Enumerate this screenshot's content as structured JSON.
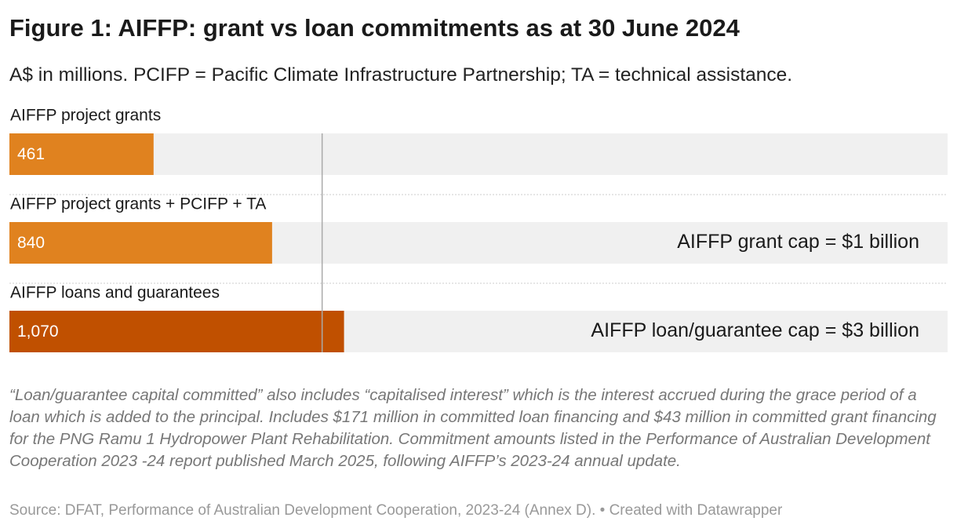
{
  "chart_data": {
    "type": "bar",
    "title": "Figure 1: AIFFP: grant vs loan commitments as at 30 June 2024",
    "subtitle": "A$ in millions. PCIFP = Pacific Climate Infrastructure Partnership; TA = technical assistance.",
    "categories": [
      "AIFFP project grants",
      "AIFFP project grants + PCIFP + TA",
      "AIFFP loans and guarantees"
    ],
    "values": [
      461,
      840,
      1070
    ],
    "value_labels": [
      "461",
      "840",
      "1,070"
    ],
    "colors": [
      "#e0821f",
      "#e0821f",
      "#c05000"
    ],
    "xlim": [
      0,
      3000
    ],
    "reference_line": 1000,
    "annotations": [
      "AIFFP grant cap = $1 billion",
      "AIFFP loan/guarantee cap = $3 billion"
    ],
    "notes": "“Loan/guarantee capital committed” also includes “capitalised interest” which is the interest accrued during the grace period of a loan which is added to the principal. Includes $171 million in committed loan financing and $43 million in committed grant financing for the PNG Ramu 1 Hydropower Plant Rehabilitation. Commitment amounts listed in the Performance of Australian Development Cooperation 2023 -24 report published March 2025, following AIFFP’s 2023-24 annual update.",
    "source": "Source: DFAT, Performance of Australian Development Cooperation, 2023-24 (Annex D). • Created with Datawrapper"
  }
}
